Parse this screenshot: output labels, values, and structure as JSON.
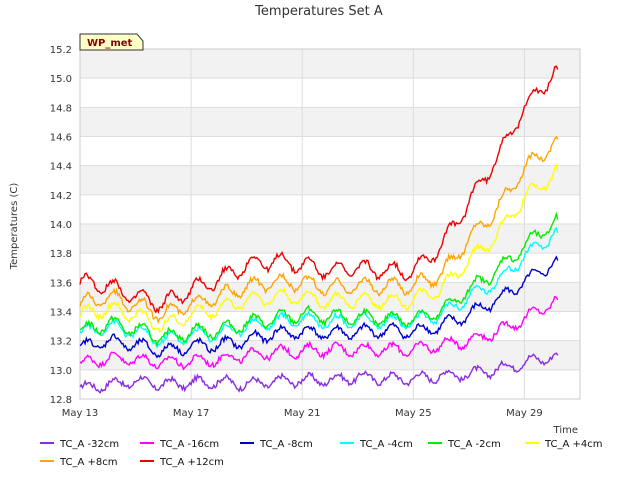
{
  "chart_data": {
    "type": "line",
    "title": "Temperatures Set A",
    "xlabel": "Time",
    "ylabel": "Temperatures (C)",
    "badge": "WP_met",
    "x_ticks": [
      "May 13",
      "May 17",
      "May 21",
      "May 25",
      "May 29"
    ],
    "y_ticks": [
      "12.8",
      "13.0",
      "13.2",
      "13.4",
      "13.6",
      "13.8",
      "14.0",
      "14.2",
      "14.4",
      "14.6",
      "14.8",
      "15.0",
      "15.2"
    ],
    "ylim": [
      12.8,
      15.2
    ],
    "xlim_days": [
      13,
      31
    ],
    "grid": true,
    "banded_background": true,
    "legend_position": "bottom",
    "x": [
      13,
      14,
      15,
      16,
      17,
      18,
      19,
      20,
      21,
      22,
      23,
      24,
      25,
      26,
      27,
      28,
      29,
      30.2
    ],
    "series": [
      {
        "name": "TC_A -32cm",
        "color": "#8a2be2",
        "values": [
          12.87,
          12.9,
          12.92,
          12.9,
          12.91,
          12.92,
          12.9,
          12.92,
          12.93,
          12.93,
          12.95,
          12.94,
          12.94,
          12.96,
          12.97,
          13.0,
          13.05,
          13.1
        ]
      },
      {
        "name": "TC_A -16cm",
        "color": "#ff00ff",
        "values": [
          13.04,
          13.08,
          13.07,
          13.05,
          13.06,
          13.07,
          13.1,
          13.12,
          13.13,
          13.14,
          13.14,
          13.14,
          13.14,
          13.17,
          13.2,
          13.26,
          13.35,
          13.48
        ]
      },
      {
        "name": "TC_A -8cm",
        "color": "#0000cd",
        "values": [
          13.15,
          13.2,
          13.17,
          13.13,
          13.16,
          13.17,
          13.2,
          13.25,
          13.26,
          13.25,
          13.26,
          13.27,
          13.26,
          13.3,
          13.38,
          13.48,
          13.6,
          13.75
        ]
      },
      {
        "name": "TC_A -4cm",
        "color": "#00ffff",
        "values": [
          13.25,
          13.3,
          13.26,
          13.2,
          13.24,
          13.25,
          13.3,
          13.33,
          13.35,
          13.33,
          13.34,
          13.33,
          13.33,
          13.38,
          13.5,
          13.6,
          13.78,
          13.94
        ]
      },
      {
        "name": "TC_A -2cm",
        "color": "#00ee00",
        "values": [
          13.26,
          13.32,
          13.28,
          13.22,
          13.26,
          13.27,
          13.32,
          13.35,
          13.38,
          13.36,
          13.36,
          13.35,
          13.35,
          13.4,
          13.55,
          13.68,
          13.85,
          14.03
        ]
      },
      {
        "name": "TC_A +4cm",
        "color": "#ffff00",
        "values": [
          13.38,
          13.42,
          13.38,
          13.3,
          13.38,
          13.42,
          13.48,
          13.5,
          13.5,
          13.47,
          13.48,
          13.47,
          13.48,
          13.55,
          13.75,
          13.92,
          14.18,
          14.36
        ]
      },
      {
        "name": "TC_A +8cm",
        "color": "#ffa500",
        "values": [
          13.45,
          13.5,
          13.45,
          13.38,
          13.45,
          13.5,
          13.57,
          13.6,
          13.6,
          13.56,
          13.58,
          13.57,
          13.58,
          13.65,
          13.9,
          14.1,
          14.38,
          14.58
        ]
      },
      {
        "name": "TC_A +12cm",
        "color": "#ee0000",
        "values": [
          13.6,
          13.58,
          13.5,
          13.45,
          13.55,
          13.62,
          13.72,
          13.75,
          13.72,
          13.68,
          13.7,
          13.68,
          13.68,
          13.85,
          14.15,
          14.45,
          14.8,
          15.06
        ]
      }
    ]
  }
}
